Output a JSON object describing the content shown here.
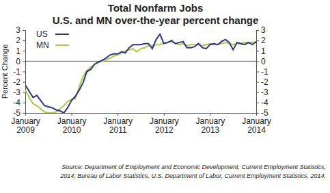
{
  "chart_data": {
    "type": "line",
    "title": "Total Nonfarm Jobs",
    "subtitle": "U.S. and MN over-the-year percent change",
    "y_label": "Percent Change",
    "source": [
      "Source: Department of Employment and Economic Development, Current Employment Statistics,",
      "2014; Bureau of Labor Statistics, U.S. Department of Labor, Current Employment Statistics, 2014."
    ],
    "categories": [
      "January 2009",
      null,
      null,
      null,
      null,
      null,
      null,
      null,
      null,
      null,
      null,
      null,
      "January 2010",
      null,
      null,
      null,
      null,
      null,
      null,
      null,
      null,
      null,
      null,
      null,
      "January 2011",
      null,
      null,
      null,
      null,
      null,
      null,
      null,
      null,
      null,
      null,
      null,
      "January 2012",
      null,
      null,
      null,
      null,
      null,
      null,
      null,
      null,
      null,
      null,
      null,
      "January 2013",
      null,
      null,
      null,
      null,
      null,
      null,
      null,
      null,
      null,
      null,
      null,
      "January 2014"
    ],
    "series": [
      {
        "name": "US",
        "color": "#2e3192",
        "values": [
          -2.3,
          -2.9,
          -3.5,
          -3.3,
          -3.8,
          -4.3,
          -4.4,
          -4.5,
          -4.7,
          -4.8,
          -5.0,
          -4.5,
          -3.8,
          -3.4,
          -2.8,
          -2.1,
          -1.0,
          -0.8,
          -0.3,
          -0.1,
          0.1,
          0.3,
          0.6,
          0.7,
          0.7,
          0.9,
          0.8,
          1.3,
          1.6,
          1.6,
          1.6,
          1.7,
          1.7,
          1.2,
          2.1,
          2.6,
          1.7,
          1.8,
          2.0,
          1.7,
          1.8,
          1.9,
          1.3,
          1.3,
          1.4,
          1.7,
          1.3,
          1.2,
          1.6,
          1.7,
          1.6,
          1.9,
          2.1,
          1.8,
          1.1,
          1.8,
          1.7,
          1.6,
          1.8,
          1.6,
          1.9
        ]
      },
      {
        "name": "MN",
        "color": "#a6ce39",
        "values": [
          -2.8,
          -3.5,
          -4.1,
          -4.3,
          -4.6,
          -4.9,
          -5.0,
          -5.0,
          -4.9,
          -4.6,
          -4.3,
          -3.9,
          -3.7,
          -3.6,
          -2.5,
          -1.5,
          -0.9,
          -0.6,
          -0.3,
          -0.1,
          0.0,
          0.1,
          0.3,
          0.5,
          0.6,
          0.8,
          1.0,
          1.1,
          1.2,
          0.9,
          1.2,
          1.3,
          1.5,
          1.5,
          1.6,
          1.6,
          1.8,
          1.8,
          1.9,
          1.7,
          1.6,
          1.7,
          1.5,
          1.6,
          1.6,
          1.6,
          1.5,
          1.6,
          1.7,
          1.6,
          1.6,
          1.7,
          1.8,
          1.7,
          1.6,
          1.7,
          1.7,
          1.8,
          1.8,
          1.8,
          1.8
        ]
      }
    ],
    "ylim": [
      -5,
      3
    ],
    "yticks": [
      -5,
      -4,
      -3,
      -2,
      -1,
      0,
      1,
      2,
      3
    ],
    "legend": "upper left",
    "grid": false
  }
}
